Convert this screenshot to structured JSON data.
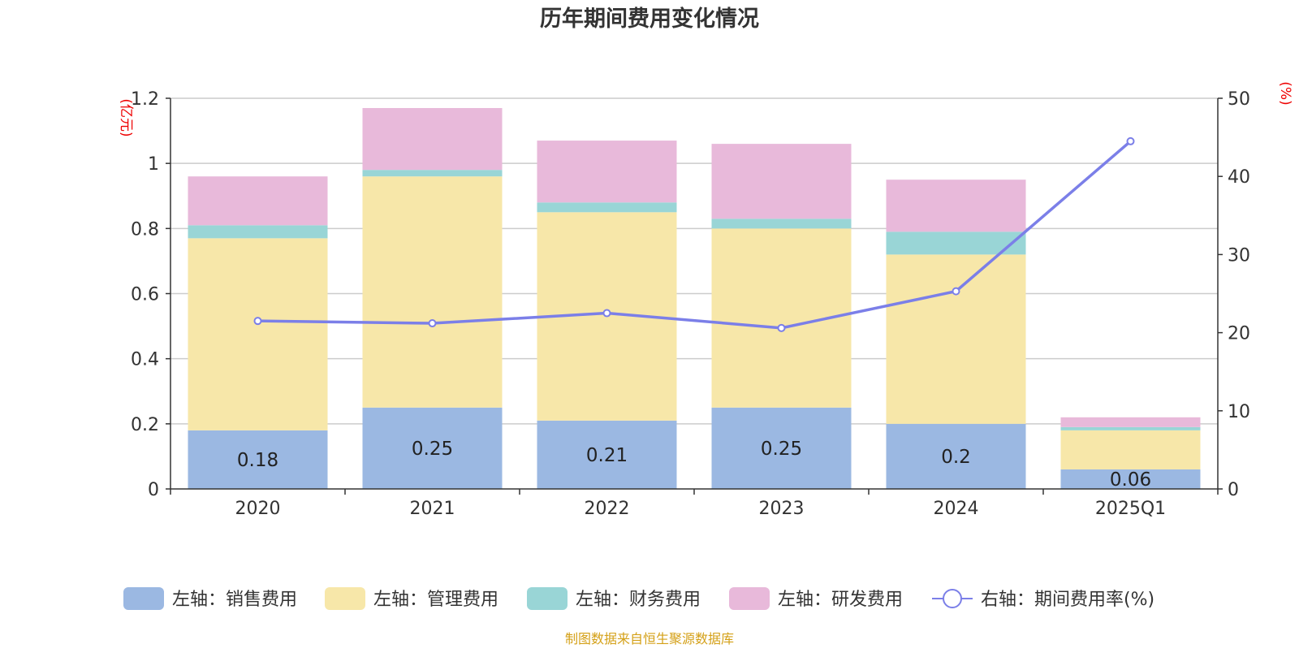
{
  "chart_data": {
    "type": "bar",
    "title": "历年期间费用变化情况",
    "source": "制图数据来自恒生聚源数据库",
    "left_axis_unit": "(亿元)",
    "right_axis_unit": "(%)",
    "categories": [
      "2020",
      "2021",
      "2022",
      "2023",
      "2024",
      "2025Q1"
    ],
    "ylim_left": [
      0,
      1.2
    ],
    "yticks_left": [
      "0",
      "0.2",
      "0.4",
      "0.6",
      "0.8",
      "1",
      "1.2"
    ],
    "ylim_right": [
      0,
      50
    ],
    "yticks_right": [
      "0",
      "10",
      "20",
      "30",
      "40",
      "50"
    ],
    "grid": true,
    "legend_position": "bottom",
    "stacked": true,
    "series": [
      {
        "name": "左轴：销售费用",
        "type": "bar",
        "color": "#9bb8e2",
        "values": [
          0.18,
          0.25,
          0.21,
          0.25,
          0.2,
          0.06
        ],
        "labels": [
          "0.18",
          "0.25",
          "0.21",
          "0.25",
          "0.2",
          "0.06"
        ]
      },
      {
        "name": "左轴：管理费用",
        "type": "bar",
        "color": "#f7e7a9",
        "values": [
          0.59,
          0.71,
          0.64,
          0.55,
          0.52,
          0.12
        ]
      },
      {
        "name": "左轴：财务费用",
        "type": "bar",
        "color": "#99d5d6",
        "values": [
          0.04,
          0.02,
          0.03,
          0.03,
          0.07,
          0.01
        ]
      },
      {
        "name": "左轴：研发费用",
        "type": "bar",
        "color": "#e8b9da",
        "values": [
          0.15,
          0.19,
          0.19,
          0.23,
          0.16,
          0.03
        ]
      },
      {
        "name": "右轴：期间费用率(%)",
        "type": "line",
        "color": "#7b7fe8",
        "values": [
          21.5,
          21.2,
          22.5,
          20.6,
          25.3,
          44.5
        ]
      }
    ]
  }
}
